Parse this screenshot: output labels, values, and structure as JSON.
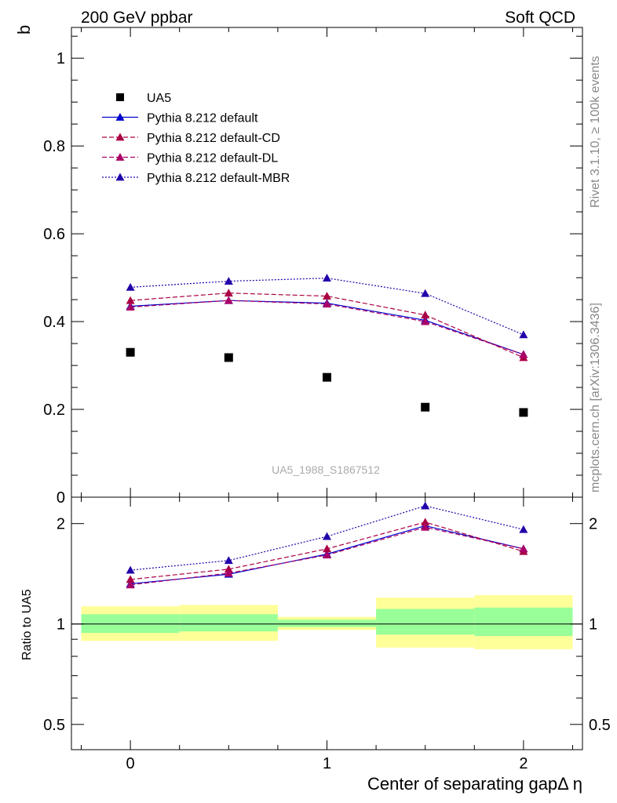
{
  "header": {
    "left_title": "200 GeV ppbar",
    "right_title": "Soft QCD",
    "side_label_top": "Rivet 3.1.10, ≥ 100k events",
    "side_label_bottom": "mcplots.cern.ch [arXiv:1306.3436]",
    "watermark": "UA5_1988_S1867512"
  },
  "chart_data": [
    {
      "type": "scatter",
      "panel": "main",
      "ylabel": "b",
      "xlabel": "Center of separating gapΔ η",
      "xlim": [
        -0.3,
        2.3
      ],
      "ylim": [
        0,
        1.07
      ],
      "y_ticks": [
        0,
        0.2,
        0.4,
        0.6,
        0.8,
        1
      ],
      "y_tick_labels": [
        "0",
        "0.2",
        "0.4",
        "0.6",
        "0.8",
        "1"
      ],
      "x": [
        0,
        0.5,
        1,
        1.5,
        2
      ],
      "series": [
        {
          "name": "UA5",
          "marker": "square",
          "line": "none",
          "color": "#000000",
          "values": [
            0.33,
            0.318,
            0.273,
            0.205,
            0.193
          ]
        },
        {
          "name": "Pythia 8.212 default",
          "marker": "triangle",
          "line": "solid",
          "color": "#0000cc",
          "values": [
            0.435,
            0.448,
            0.442,
            0.403,
            0.325
          ]
        },
        {
          "name": "Pythia 8.212 default-CD",
          "marker": "triangle",
          "line": "dashed",
          "color": "#aa0044",
          "values": [
            0.448,
            0.465,
            0.458,
            0.415,
            0.318
          ]
        },
        {
          "name": "Pythia 8.212 default-DL",
          "marker": "triangle",
          "line": "dashed",
          "color": "#aa0066",
          "values": [
            0.433,
            0.448,
            0.44,
            0.4,
            0.325
          ]
        },
        {
          "name": "Pythia 8.212 default-MBR",
          "marker": "triangle",
          "line": "dotted",
          "color": "#2200aa",
          "values": [
            0.478,
            0.492,
            0.499,
            0.464,
            0.37
          ]
        }
      ]
    },
    {
      "type": "line",
      "panel": "ratio",
      "ylabel": "Ratio to UA5",
      "xlabel": "Center of separating gapΔ η",
      "xlim": [
        -0.3,
        2.3
      ],
      "y_scale": "log",
      "ylim": [
        0.42,
        2.4
      ],
      "y_ticks": [
        0.5,
        1,
        2
      ],
      "y_tick_labels": [
        "0.5",
        "1",
        "2"
      ],
      "x_ticks": [
        0,
        1,
        2
      ],
      "x_tick_labels": [
        "0",
        "1",
        "2"
      ],
      "x": [
        0,
        0.5,
        1,
        1.5,
        2
      ],
      "uncertainty_bands": [
        {
          "x_range": [
            -0.25,
            0.25
          ],
          "inner": [
            0.94,
            1.07
          ],
          "outer": [
            0.89,
            1.13
          ]
        },
        {
          "x_range": [
            0.25,
            0.75
          ],
          "inner": [
            0.95,
            1.07
          ],
          "outer": [
            0.89,
            1.14
          ]
        },
        {
          "x_range": [
            0.75,
            1.25
          ],
          "inner": [
            0.98,
            1.03
          ],
          "outer": [
            0.96,
            1.05
          ]
        },
        {
          "x_range": [
            1.25,
            1.75
          ],
          "inner": [
            0.93,
            1.11
          ],
          "outer": [
            0.85,
            1.2
          ]
        },
        {
          "x_range": [
            1.75,
            2.25
          ],
          "inner": [
            0.92,
            1.12
          ],
          "outer": [
            0.84,
            1.22
          ]
        }
      ],
      "band_colors": {
        "inner": "#99ff99",
        "outer": "#ffff99"
      },
      "series": [
        {
          "name": "Pythia 8.212 default",
          "line": "solid",
          "color": "#0000cc",
          "values": [
            1.32,
            1.41,
            1.62,
            1.97,
            1.68
          ]
        },
        {
          "name": "Pythia 8.212 default-CD",
          "line": "dashed",
          "color": "#aa0044",
          "values": [
            1.36,
            1.46,
            1.68,
            2.02,
            1.65
          ]
        },
        {
          "name": "Pythia 8.212 default-DL",
          "line": "dashed",
          "color": "#aa0066",
          "values": [
            1.31,
            1.42,
            1.61,
            1.95,
            1.68
          ]
        },
        {
          "name": "Pythia 8.212 default-MBR",
          "line": "dotted",
          "color": "#2200aa",
          "values": [
            1.45,
            1.55,
            1.83,
            2.26,
            1.92
          ]
        }
      ]
    }
  ]
}
